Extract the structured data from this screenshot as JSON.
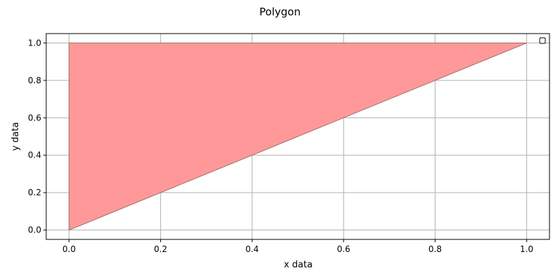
{
  "chart_data": {
    "type": "area",
    "title": "Polygon",
    "xlabel": "x data",
    "ylabel": "y data",
    "xlim": [
      -0.05,
      1.05
    ],
    "ylim": [
      -0.05,
      1.05
    ],
    "xticks": [
      0.0,
      0.2,
      0.4,
      0.6,
      0.8,
      1.0
    ],
    "yticks": [
      0.0,
      0.2,
      0.4,
      0.6,
      0.8,
      1.0
    ],
    "xtick_labels": [
      "0.0",
      "0.2",
      "0.4",
      "0.6",
      "0.8",
      "1.0"
    ],
    "ytick_labels": [
      "0.0",
      "0.2",
      "0.4",
      "0.6",
      "0.8",
      "1.0"
    ],
    "grid": true,
    "legend": "top-right, empty",
    "series": [
      {
        "shape": "polygon",
        "vertices": [
          [
            0,
            0
          ],
          [
            1,
            1
          ],
          [
            0,
            1
          ]
        ],
        "fill_color": "#ff9999",
        "edge_color": "#a0706c"
      }
    ]
  },
  "colors": {
    "grid": "#b0b0b0",
    "axes": "#000000",
    "background": "#ffffff"
  }
}
